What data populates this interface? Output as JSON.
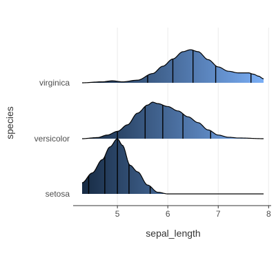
{
  "chart_data": {
    "type": "ridgeline",
    "title": "",
    "xlabel": "sepal_length",
    "ylabel": "species",
    "xlim": [
      4.3,
      7.9
    ],
    "x_ticks": [
      5,
      6,
      7,
      8
    ],
    "legend": "none",
    "grid": "vertical major gridlines",
    "fill_colors": {
      "dark": "#172b44",
      "light": "#7aaef5",
      "outline": "#000000",
      "grid": "#ebebeb",
      "axis": "#333333"
    },
    "quantile_lines": "deciles",
    "series": [
      {
        "name": "virginica",
        "x": [
          4.3,
          4.7,
          4.9,
          5.1,
          5.4,
          5.7,
          5.9,
          6.1,
          6.3,
          6.45,
          6.6,
          6.8,
          7.0,
          7.2,
          7.4,
          7.6,
          7.7,
          7.8,
          7.9
        ],
        "density": [
          0.0,
          0.03,
          0.06,
          0.03,
          0.08,
          0.28,
          0.5,
          0.72,
          0.94,
          1.0,
          0.94,
          0.7,
          0.48,
          0.35,
          0.3,
          0.3,
          0.26,
          0.2,
          0.12
        ],
        "quantiles": [
          5.6,
          6.1,
          6.5,
          6.95,
          7.65
        ]
      },
      {
        "name": "versicolor",
        "x": [
          4.3,
          4.6,
          4.8,
          5.0,
          5.2,
          5.4,
          5.6,
          5.7,
          5.8,
          6.0,
          6.2,
          6.4,
          6.6,
          6.8,
          7.0,
          7.2,
          7.4,
          7.9
        ],
        "density": [
          0.0,
          0.03,
          0.1,
          0.2,
          0.38,
          0.7,
          0.92,
          1.0,
          0.96,
          0.88,
          0.76,
          0.6,
          0.44,
          0.24,
          0.1,
          0.04,
          0.02,
          0.0
        ],
        "quantiles": [
          5.0,
          5.55,
          5.9,
          6.3,
          6.85
        ]
      },
      {
        "name": "setosa",
        "x": [
          4.3,
          4.5,
          4.7,
          4.85,
          5.0,
          5.1,
          5.25,
          5.4,
          5.6,
          5.8,
          6.0,
          6.2,
          7.9
        ],
        "density": [
          0.2,
          0.38,
          0.62,
          0.85,
          1.0,
          0.88,
          0.52,
          0.4,
          0.16,
          0.03,
          0.0,
          0.0,
          0.0
        ],
        "quantiles": [
          4.43,
          4.75,
          5.0,
          5.23,
          5.65
        ]
      }
    ]
  }
}
